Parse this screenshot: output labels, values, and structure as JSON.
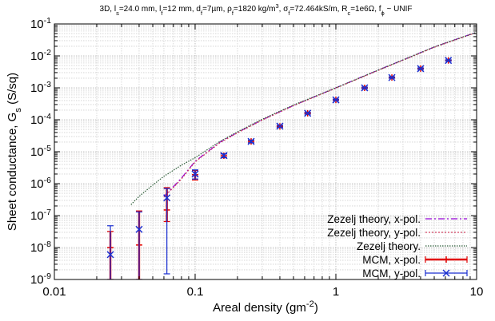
{
  "chart_data": {
    "type": "scatter",
    "title_parts": [
      {
        "t": "3D, l"
      },
      {
        "t": "s",
        "sub": true
      },
      {
        "t": "=24.0 mm, l"
      },
      {
        "t": "f",
        "sub": true
      },
      {
        "t": "=12 mm, d"
      },
      {
        "t": "f",
        "sub": true
      },
      {
        "t": "=7µm, ρ"
      },
      {
        "t": "f",
        "sub": true
      },
      {
        "t": "=1820 kg/m"
      },
      {
        "t": "3",
        "sup": true
      },
      {
        "t": ", σ"
      },
      {
        "t": "f",
        "sub": true
      },
      {
        "t": "=72.464kS/m, R"
      },
      {
        "t": "c",
        "sub": true
      },
      {
        "t": "=1e6Ω, f"
      },
      {
        "t": "ϕ",
        "sub": true
      },
      {
        "t": " ~ UNIF"
      }
    ],
    "xlabel_parts": [
      {
        "t": "Areal density (gm"
      },
      {
        "t": "-2",
        "sup": true
      },
      {
        "t": ")"
      }
    ],
    "ylabel_parts": [
      {
        "t": "Sheet conductance, G"
      },
      {
        "t": "s",
        "sub": true
      },
      {
        "t": " (S/sq)"
      }
    ],
    "xscale": "log",
    "yscale": "log",
    "xlim": [
      0.01,
      10
    ],
    "ylim": [
      1e-09,
      0.1
    ],
    "grid": true,
    "legend_position": "bottom-right",
    "x_tick_labels": [
      {
        "v": 0.01,
        "label": "0.01"
      },
      {
        "v": 0.1,
        "label": "0.1"
      },
      {
        "v": 1,
        "label": "1"
      },
      {
        "v": 10,
        "label": "10"
      }
    ],
    "y_tick_labels": [
      {
        "v": 1e-09,
        "mant": "10",
        "exp": "-9"
      },
      {
        "v": 1e-08,
        "mant": "10",
        "exp": "-8"
      },
      {
        "v": 1e-07,
        "mant": "10",
        "exp": "-7"
      },
      {
        "v": 1e-06,
        "mant": "10",
        "exp": "-6"
      },
      {
        "v": 1e-05,
        "mant": "10",
        "exp": "-5"
      },
      {
        "v": 0.0001,
        "mant": "10",
        "exp": "-4"
      },
      {
        "v": 0.001,
        "mant": "10",
        "exp": "-3"
      },
      {
        "v": 0.01,
        "mant": "10",
        "exp": "-2"
      },
      {
        "v": 0.1,
        "mant": "10",
        "exp": "-1"
      }
    ],
    "series": [
      {
        "name": "Zezelj theory, x-pol.",
        "kind": "line",
        "color": "#9400d3",
        "dash": "8,3,2,3",
        "x": [
          0.06,
          0.07,
          0.08,
          0.1,
          0.15,
          0.2,
          0.3,
          0.5,
          1,
          2,
          3,
          5,
          7,
          10
        ],
        "y": [
          4e-07,
          8e-07,
          1.5e-06,
          5e-06,
          2e-05,
          4e-05,
          0.0001,
          0.00028,
          0.001,
          0.0036,
          0.0075,
          0.019,
          0.032,
          0.055
        ]
      },
      {
        "name": "Zezelj theory, y-pol.",
        "kind": "line",
        "color": "#d04060",
        "dash": "2,2",
        "x": [
          0.06,
          0.07,
          0.08,
          0.1,
          0.15,
          0.2,
          0.3,
          0.5,
          1,
          2,
          3,
          5,
          7,
          10
        ],
        "y": [
          3.8e-07,
          7.5e-07,
          1.4e-06,
          4.8e-06,
          1.9e-05,
          3.9e-05,
          9.8e-05,
          0.000275,
          0.00098,
          0.0035,
          0.0073,
          0.0185,
          0.031,
          0.054
        ]
      },
      {
        "name": "Zezelj theory.",
        "kind": "line",
        "color": "#2f5f3a",
        "dash": "1.5,1.5",
        "x": [
          0.035,
          0.04,
          0.05,
          0.06,
          0.08,
          0.1,
          0.15,
          0.2,
          0.3,
          0.5,
          1,
          2,
          3,
          5,
          7,
          10
        ],
        "y": [
          2.2e-07,
          4e-07,
          9e-07,
          1.7e-06,
          3.8e-06,
          6.5e-06,
          2.1e-05,
          4.2e-05,
          0.000105,
          0.00029,
          0.001,
          0.0036,
          0.0075,
          0.019,
          0.032,
          0.055
        ]
      },
      {
        "name": "MCM, x-pol.",
        "kind": "errorbar",
        "color": "#e00000",
        "marker": "plus",
        "x": [
          0.025,
          0.04,
          0.063,
          0.1,
          0.16,
          0.25,
          0.4,
          0.63,
          1.0,
          1.6,
          2.5,
          4.0,
          6.3
        ],
        "y": [
          1e-08,
          1.2e-08,
          1.5e-07,
          1.9e-06,
          7.5e-06,
          2.1e-05,
          6.2e-05,
          0.00016,
          0.00042,
          0.001,
          0.0021,
          0.004,
          0.0072
        ],
        "ylow": [
          1e-09,
          1e-09,
          6.5e-08,
          1.3e-06,
          6.5e-06,
          1.9e-05,
          5.8e-05,
          0.00015,
          0.0004,
          0.00095,
          0.002,
          0.0038,
          0.0069
        ],
        "yhigh": [
          3.2e-08,
          1.4e-07,
          7.5e-07,
          2.6e-06,
          8.5e-06,
          2.3e-05,
          6.6e-05,
          0.00017,
          0.00044,
          0.00105,
          0.0022,
          0.0042,
          0.0075
        ]
      },
      {
        "name": "MCM, y-pol.",
        "kind": "errorbar",
        "color": "#1a2fd0",
        "marker": "cross",
        "x": [
          0.025,
          0.04,
          0.063,
          0.1,
          0.16,
          0.25,
          0.4,
          0.63,
          1.0,
          1.6,
          2.5,
          4.0,
          6.3
        ],
        "y": [
          6e-09,
          3.7e-08,
          3.6e-07,
          2e-06,
          7.6e-06,
          2.1e-05,
          6.3e-05,
          0.00016,
          0.00042,
          0.001,
          0.0021,
          0.004,
          0.0072
        ],
        "ylow": [
          1e-09,
          1e-09,
          1.5e-09,
          1.4e-06,
          6.6e-06,
          1.9e-05,
          5.9e-05,
          0.00015,
          0.0004,
          0.00095,
          0.002,
          0.0038,
          0.0069
        ],
        "yhigh": [
          4.8e-08,
          1.3e-07,
          7e-07,
          2.7e-06,
          8.6e-06,
          2.3e-05,
          6.7e-05,
          0.00017,
          0.00044,
          0.00105,
          0.0022,
          0.0042,
          0.0075
        ]
      }
    ]
  }
}
